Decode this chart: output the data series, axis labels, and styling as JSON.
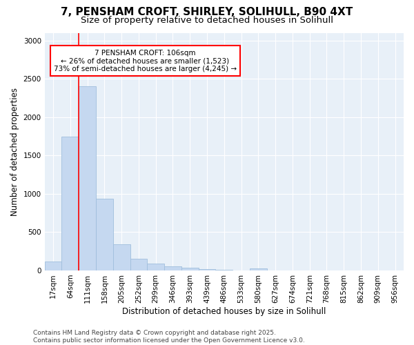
{
  "title_line1": "7, PENSHAM CROFT, SHIRLEY, SOLIHULL, B90 4XT",
  "title_line2": "Size of property relative to detached houses in Solihull",
  "xlabel": "Distribution of detached houses by size in Solihull",
  "ylabel": "Number of detached properties",
  "categories": [
    "17sqm",
    "64sqm",
    "111sqm",
    "158sqm",
    "205sqm",
    "252sqm",
    "299sqm",
    "346sqm",
    "393sqm",
    "439sqm",
    "486sqm",
    "533sqm",
    "580sqm",
    "627sqm",
    "674sqm",
    "721sqm",
    "768sqm",
    "815sqm",
    "862sqm",
    "909sqm",
    "956sqm"
  ],
  "values": [
    120,
    1750,
    2400,
    940,
    340,
    150,
    90,
    55,
    35,
    20,
    8,
    3,
    25,
    0,
    0,
    0,
    0,
    0,
    0,
    0,
    0
  ],
  "bar_color": "#c5d8f0",
  "bar_edge_color": "#a0bedd",
  "vline_x": 1.5,
  "vline_color": "red",
  "annotation_text": "7 PENSHAM CROFT: 106sqm\n← 26% of detached houses are smaller (1,523)\n73% of semi-detached houses are larger (4,245) →",
  "annotation_box_color": "white",
  "annotation_box_edge_color": "red",
  "ylim": [
    0,
    3100
  ],
  "yticks": [
    0,
    500,
    1000,
    1500,
    2000,
    2500,
    3000
  ],
  "background_color": "#e8f0f8",
  "footer_text": "Contains HM Land Registry data © Crown copyright and database right 2025.\nContains public sector information licensed under the Open Government Licence v3.0.",
  "title_fontsize": 11,
  "subtitle_fontsize": 9.5,
  "axis_label_fontsize": 8.5,
  "tick_fontsize": 7.5,
  "annotation_fontsize": 7.5,
  "footer_fontsize": 6.5
}
